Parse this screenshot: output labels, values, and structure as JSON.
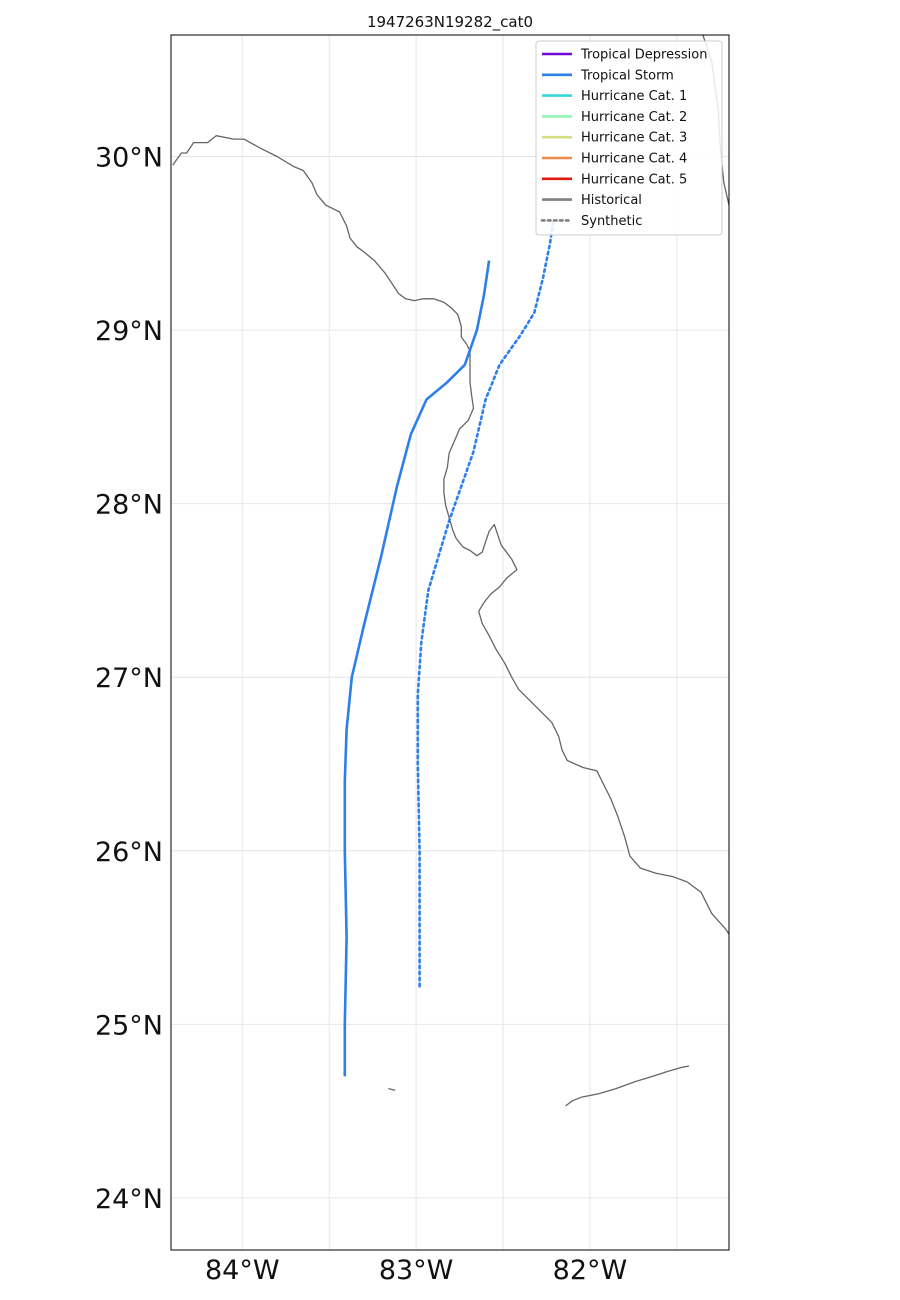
{
  "map": {
    "title": "1947263N19282_cat0",
    "colors": {
      "tropical_depression": "#6f0ad6",
      "tropical_storm": "#2f7fe8",
      "cat1": "#35d6d6",
      "cat2": "#8ff5b4",
      "cat3": "#d4dd80",
      "cat4": "#f28a4a",
      "cat5": "#e01a10",
      "historical": "#808080",
      "coast": "#666666"
    },
    "legend": [
      {
        "label": "Tropical Depression",
        "color": "#6f0ad6",
        "dash": false
      },
      {
        "label": "Tropical Storm",
        "color": "#2f7fe8",
        "dash": false
      },
      {
        "label": "Hurricane Cat. 1",
        "color": "#35d6d6",
        "dash": false
      },
      {
        "label": "Hurricane Cat. 2",
        "color": "#8ff5b4",
        "dash": false
      },
      {
        "label": "Hurricane Cat. 3",
        "color": "#d4dd80",
        "dash": false
      },
      {
        "label": "Hurricane Cat. 4",
        "color": "#f28a4a",
        "dash": false
      },
      {
        "label": "Hurricane Cat. 5",
        "color": "#e01a10",
        "dash": false
      },
      {
        "label": "Historical",
        "color": "#808080",
        "dash": false
      },
      {
        "label": "Synthetic",
        "color": "#808080",
        "dash": true
      }
    ],
    "lon_ticks": [
      {
        "value": -84,
        "label": "84°W"
      },
      {
        "value": -83,
        "label": "83°W"
      },
      {
        "value": -82,
        "label": "82°W"
      }
    ],
    "lat_ticks": [
      {
        "value": 24,
        "label": "24°N"
      },
      {
        "value": 25,
        "label": "25°N"
      },
      {
        "value": 26,
        "label": "26°N"
      },
      {
        "value": 27,
        "label": "27°N"
      },
      {
        "value": 28,
        "label": "28°N"
      },
      {
        "value": 29,
        "label": "29°N"
      },
      {
        "value": 30,
        "label": "30°N"
      }
    ],
    "extent": {
      "lon": [
        -84.41,
        -81.2
      ],
      "lat": [
        23.7,
        30.7
      ]
    },
    "tracks": {
      "historical": {
        "category": "Tropical Storm",
        "points": [
          [
            -83.41,
            24.7
          ],
          [
            -83.41,
            25.0
          ],
          [
            -83.4,
            25.5
          ],
          [
            -83.41,
            26.0
          ],
          [
            -83.41,
            26.4
          ],
          [
            -83.4,
            26.7
          ],
          [
            -83.37,
            27.0
          ],
          [
            -83.3,
            27.3
          ],
          [
            -83.2,
            27.7
          ],
          [
            -83.11,
            28.1
          ],
          [
            -83.03,
            28.4
          ],
          [
            -82.94,
            28.6
          ],
          [
            -82.82,
            28.7
          ],
          [
            -82.72,
            28.8
          ],
          [
            -82.65,
            29.0
          ],
          [
            -82.61,
            29.2
          ],
          [
            -82.58,
            29.4
          ]
        ]
      },
      "synthetic": {
        "category": "Tropical Storm",
        "points": [
          [
            -82.98,
            25.22
          ],
          [
            -82.98,
            25.5
          ],
          [
            -82.98,
            26.0
          ],
          [
            -82.99,
            26.5
          ],
          [
            -82.99,
            26.9
          ],
          [
            -82.97,
            27.2
          ],
          [
            -82.93,
            27.5
          ],
          [
            -82.87,
            27.7
          ],
          [
            -82.81,
            27.9
          ],
          [
            -82.74,
            28.1
          ],
          [
            -82.67,
            28.3
          ],
          [
            -82.6,
            28.6
          ],
          [
            -82.52,
            28.8
          ],
          [
            -82.4,
            28.97
          ],
          [
            -82.32,
            29.1
          ],
          [
            -82.27,
            29.3
          ],
          [
            -82.23,
            29.5
          ],
          [
            -82.21,
            29.63
          ]
        ]
      }
    },
    "coastlines": [
      [
        [
          -84.4,
          29.95
        ],
        [
          -84.35,
          30.02
        ],
        [
          -84.32,
          30.02
        ],
        [
          -84.28,
          30.08
        ],
        [
          -84.2,
          30.08
        ],
        [
          -84.15,
          30.12
        ],
        [
          -84.05,
          30.1
        ],
        [
          -83.99,
          30.1
        ],
        [
          -83.9,
          30.05
        ],
        [
          -83.8,
          30.0
        ],
        [
          -83.7,
          29.94
        ],
        [
          -83.65,
          29.92
        ],
        [
          -83.6,
          29.85
        ],
        [
          -83.57,
          29.78
        ],
        [
          -83.52,
          29.72
        ],
        [
          -83.44,
          29.68
        ],
        [
          -83.4,
          29.6
        ],
        [
          -83.38,
          29.53
        ],
        [
          -83.34,
          29.48
        ],
        [
          -83.3,
          29.45
        ],
        [
          -83.24,
          29.4
        ],
        [
          -83.18,
          29.33
        ],
        [
          -83.14,
          29.27
        ],
        [
          -83.1,
          29.21
        ],
        [
          -83.06,
          29.18
        ],
        [
          -83.01,
          29.17
        ],
        [
          -82.96,
          29.18
        ],
        [
          -82.9,
          29.18
        ],
        [
          -82.84,
          29.16
        ],
        [
          -82.8,
          29.13
        ],
        [
          -82.76,
          29.09
        ],
        [
          -82.74,
          29.02
        ],
        [
          -82.74,
          28.96
        ],
        [
          -82.71,
          28.92
        ],
        [
          -82.69,
          28.88
        ],
        [
          -82.69,
          28.8
        ],
        [
          -82.69,
          28.7
        ],
        [
          -82.68,
          28.62
        ],
        [
          -82.67,
          28.55
        ],
        [
          -82.7,
          28.48
        ],
        [
          -82.75,
          28.43
        ],
        [
          -82.78,
          28.36
        ],
        [
          -82.81,
          28.29
        ],
        [
          -82.82,
          28.21
        ],
        [
          -82.84,
          28.14
        ],
        [
          -82.84,
          28.06
        ],
        [
          -82.83,
          27.99
        ],
        [
          -82.81,
          27.92
        ],
        [
          -82.79,
          27.85
        ],
        [
          -82.77,
          27.8
        ],
        [
          -82.73,
          27.75
        ],
        [
          -82.69,
          27.73
        ],
        [
          -82.65,
          27.7
        ],
        [
          -82.62,
          27.72
        ],
        [
          -82.6,
          27.78
        ],
        [
          -82.58,
          27.84
        ],
        [
          -82.55,
          27.88
        ],
        [
          -82.53,
          27.82
        ],
        [
          -82.51,
          27.76
        ],
        [
          -82.48,
          27.72
        ],
        [
          -82.45,
          27.68
        ],
        [
          -82.42,
          27.62
        ],
        [
          -82.48,
          27.57
        ],
        [
          -82.52,
          27.52
        ],
        [
          -82.57,
          27.48
        ],
        [
          -82.61,
          27.43
        ],
        [
          -82.64,
          27.38
        ],
        [
          -82.62,
          27.31
        ],
        [
          -82.58,
          27.24
        ],
        [
          -82.54,
          27.16
        ],
        [
          -82.49,
          27.08
        ],
        [
          -82.45,
          27.0
        ],
        [
          -82.41,
          26.93
        ],
        [
          -82.35,
          26.87
        ],
        [
          -82.28,
          26.8
        ],
        [
          -82.22,
          26.74
        ],
        [
          -82.18,
          26.66
        ],
        [
          -82.16,
          26.58
        ],
        [
          -82.13,
          26.52
        ],
        [
          -82.04,
          26.48
        ],
        [
          -81.96,
          26.46
        ],
        [
          -81.92,
          26.38
        ],
        [
          -81.88,
          26.3
        ],
        [
          -81.84,
          26.2
        ],
        [
          -81.8,
          26.08
        ],
        [
          -81.77,
          25.97
        ],
        [
          -81.71,
          25.9
        ],
        [
          -81.62,
          25.87
        ],
        [
          -81.52,
          25.85
        ],
        [
          -81.44,
          25.82
        ],
        [
          -81.36,
          25.76
        ],
        [
          -81.3,
          25.64
        ],
        [
          -81.22,
          25.55
        ],
        [
          -81.2,
          25.52
        ]
      ],
      [
        [
          -81.35,
          30.7
        ],
        [
          -81.3,
          30.55
        ],
        [
          -81.28,
          30.4
        ],
        [
          -81.26,
          30.25
        ],
        [
          -81.25,
          30.05
        ],
        [
          -81.23,
          29.85
        ],
        [
          -81.2,
          29.72
        ]
      ]
    ],
    "keys": [
      [
        [
          -82.14,
          24.53
        ],
        [
          -82.1,
          24.56
        ],
        [
          -82.05,
          24.58
        ],
        [
          -81.95,
          24.6
        ],
        [
          -81.85,
          24.63
        ],
        [
          -81.74,
          24.67
        ],
        [
          -81.64,
          24.7
        ],
        [
          -81.55,
          24.73
        ],
        [
          -81.48,
          24.75
        ],
        [
          -81.43,
          24.76
        ]
      ],
      [
        [
          -83.16,
          24.63
        ],
        [
          -83.12,
          24.62
        ]
      ]
    ]
  }
}
